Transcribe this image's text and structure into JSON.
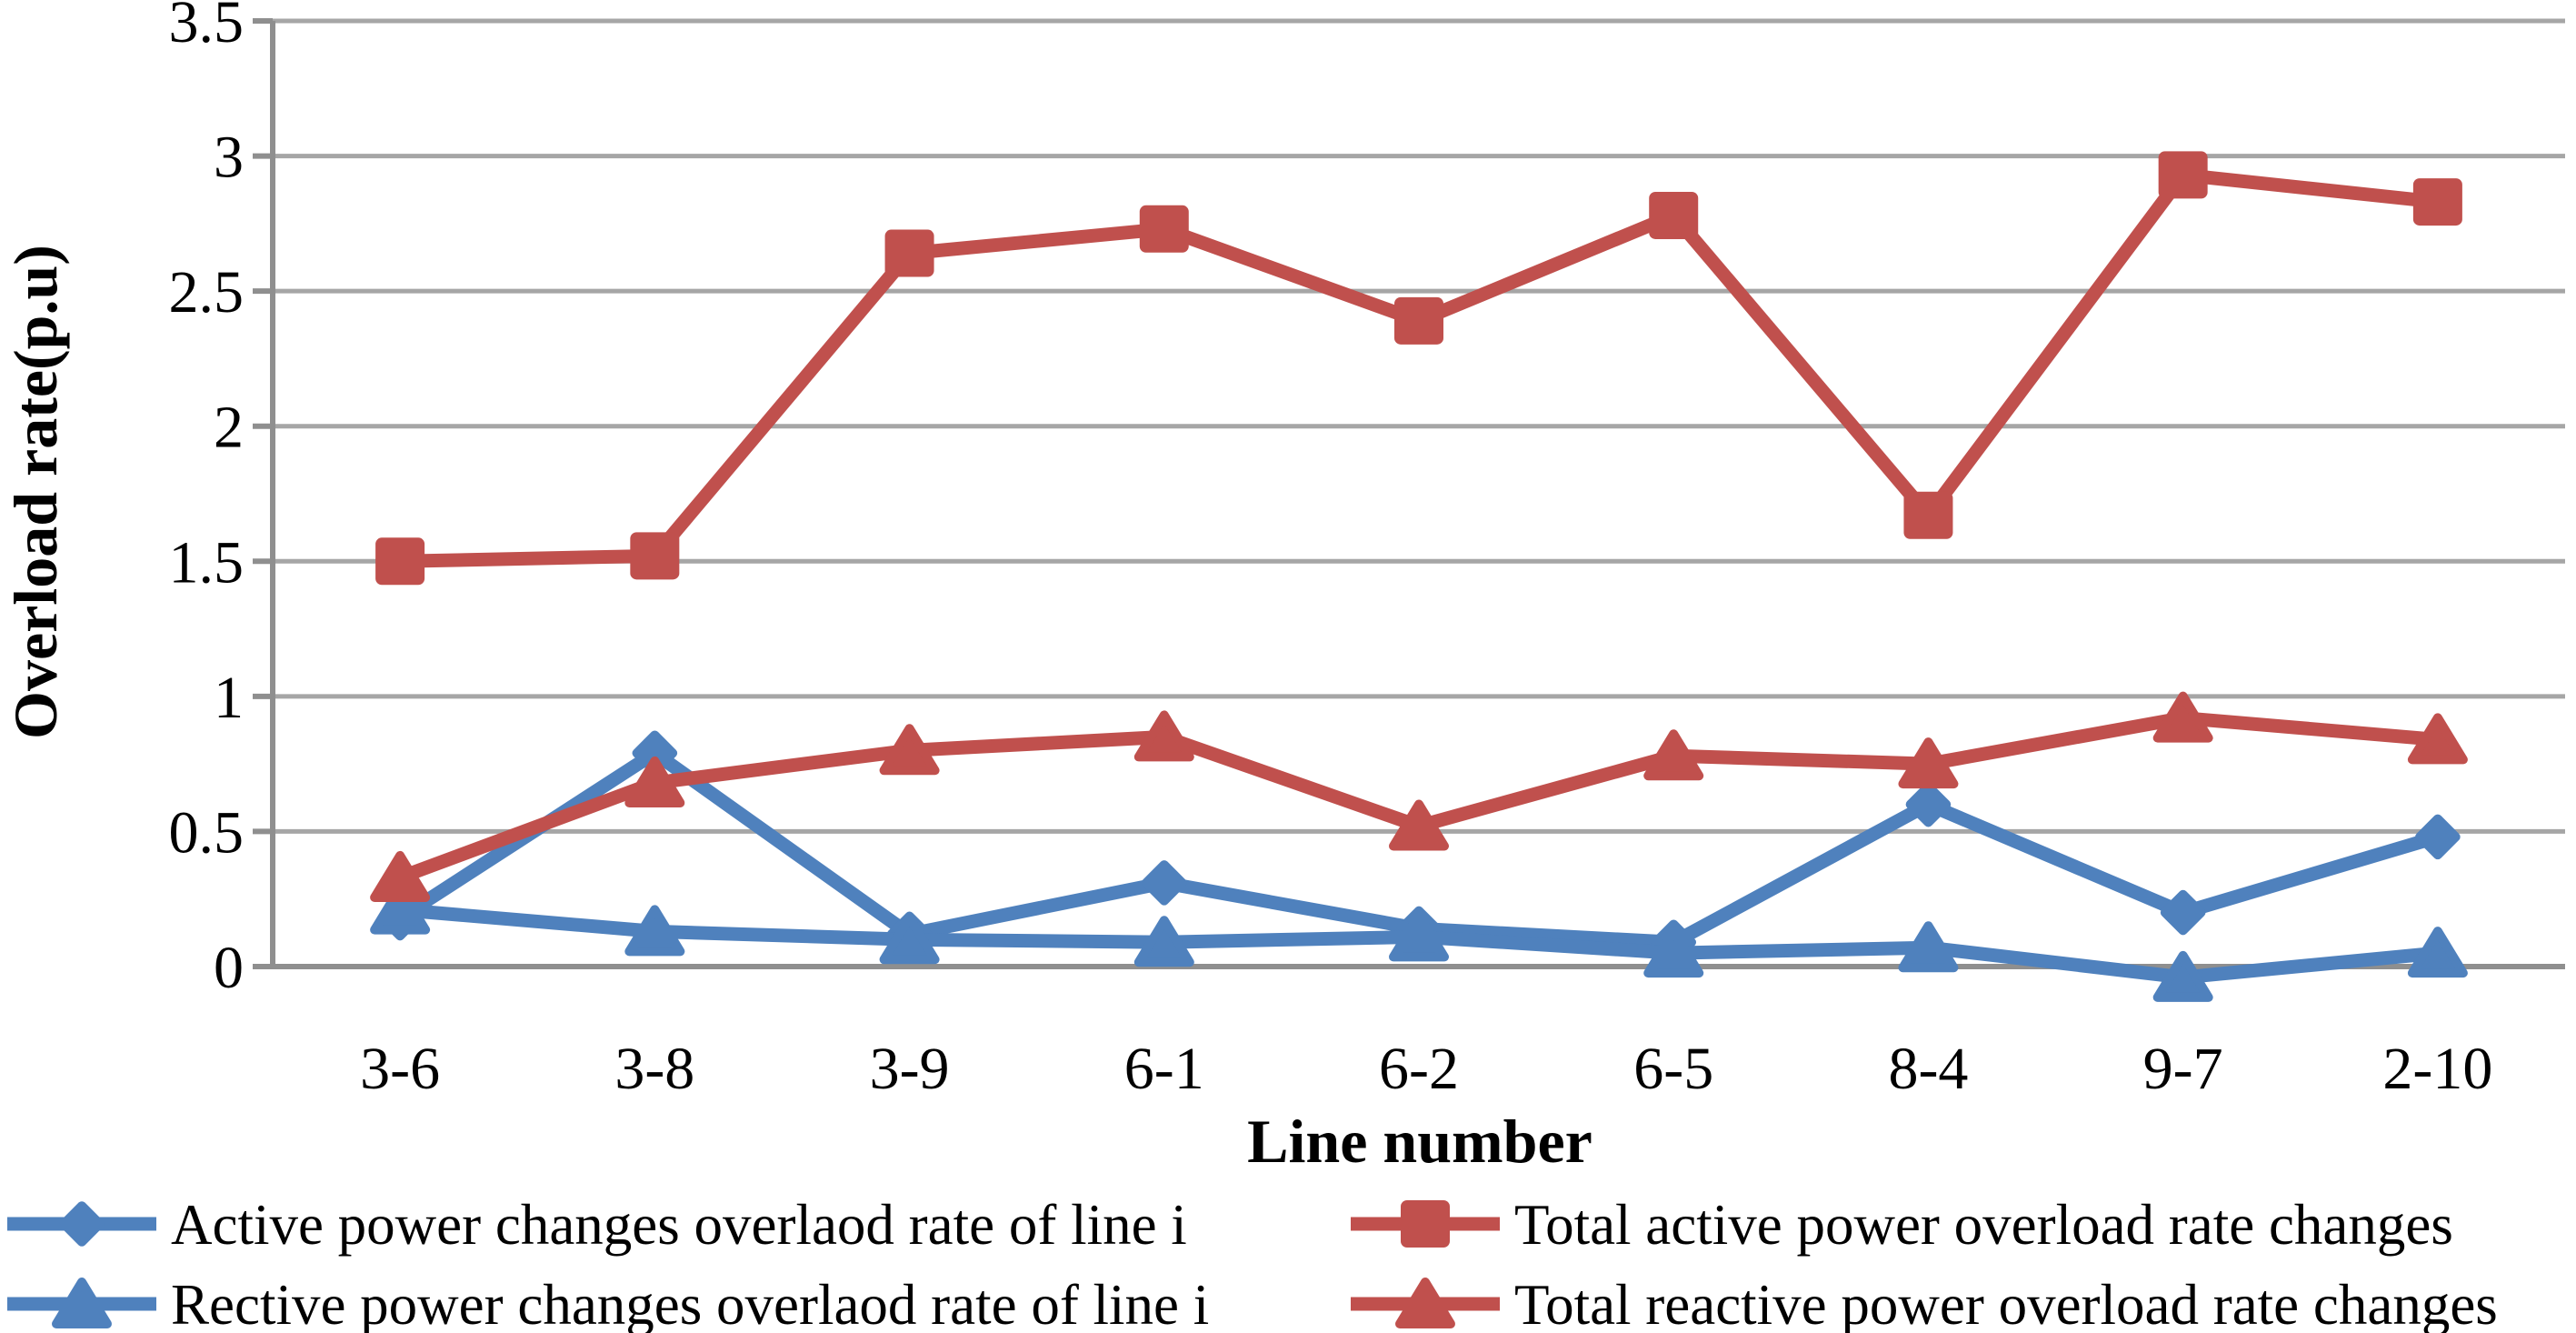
{
  "chart_data": {
    "type": "line",
    "title": "",
    "xlabel": "Line number",
    "ylabel": "Overload rate(p.u)",
    "ylim": [
      0,
      3.5
    ],
    "yticks": [
      0,
      0.5,
      1,
      1.5,
      2,
      2.5,
      3,
      3.5
    ],
    "grid": true,
    "legend_position": "bottom",
    "categories": [
      "3-6",
      "3-8",
      "3-9",
      "6-1",
      "6-2",
      "6-5",
      "8-4",
      "9-7",
      "2-10"
    ],
    "series": [
      {
        "name": "Active power changes overlaod rate of line i",
        "marker": "diamond",
        "color": "#4F81BD",
        "values": [
          0.18,
          0.79,
          0.12,
          0.31,
          0.14,
          0.09,
          0.6,
          0.2,
          0.48
        ]
      },
      {
        "name": "Total active power overload rate changes",
        "marker": "square",
        "color": "#C0504D",
        "values": [
          1.5,
          1.52,
          2.64,
          2.73,
          2.39,
          2.78,
          1.67,
          2.93,
          2.83
        ]
      },
      {
        "name": "Rective power changes overlaod rate of line i",
        "marker": "triangle",
        "color": "#4F81BD",
        "values": [
          0.21,
          0.13,
          0.1,
          0.09,
          0.11,
          0.05,
          0.07,
          -0.04,
          0.05
        ]
      },
      {
        "name": "Total reactive power overload rate changes",
        "marker": "triangle",
        "color": "#C0504D",
        "values": [
          0.33,
          0.68,
          0.8,
          0.85,
          0.52,
          0.78,
          0.75,
          0.92,
          0.84
        ]
      }
    ],
    "colors": {
      "grid": "#A6A6A6",
      "axis": "#8F8F8F",
      "text": "#000000",
      "background": "#FFFFFF"
    }
  }
}
